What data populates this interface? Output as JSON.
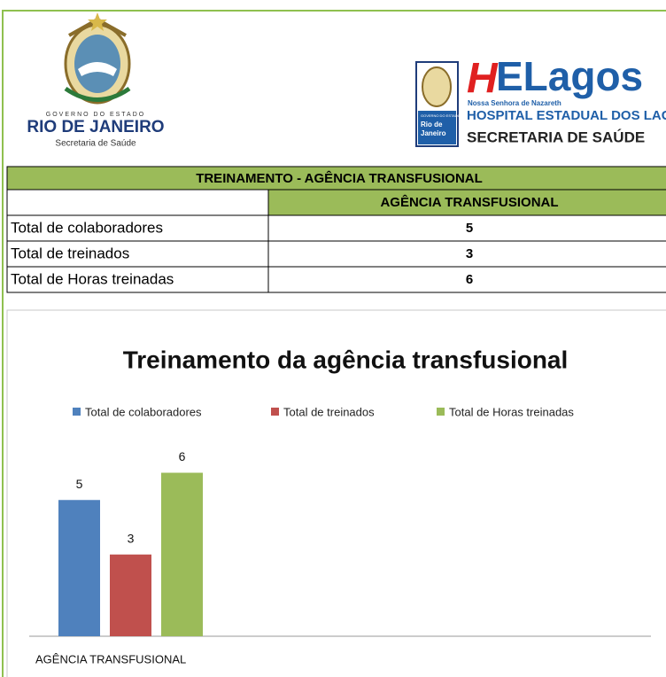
{
  "logos": {
    "left": {
      "line1": "GOVERNO DO ESTADO",
      "line2": "RIO DE JANEIRO",
      "line3": "Secretaria de Saúde"
    },
    "right": {
      "brand_h": "H",
      "brand_rest": "ELagos",
      "tagline": "Nossa Senhora de Nazareth",
      "name": "HOSPITAL ESTADUAL DOS LAGOS",
      "dept": "SECRETARIA DE SAÚDE",
      "badge": [
        "GOVERNO DO ESTADO",
        "Rio de",
        "Janeiro"
      ]
    }
  },
  "table": {
    "title": "TREINAMENTO - AGÊNCIA TRANSFUSIONAL",
    "column": "AGÊNCIA TRANSFUSIONAL",
    "rows": [
      [
        "Total de colaboradores",
        5
      ],
      [
        "Total de treinados",
        3
      ],
      [
        "Total de Horas treinadas",
        6
      ]
    ]
  },
  "chart_data": {
    "type": "bar",
    "title": "Treinamento da agência transfusional",
    "categories": [
      "AGÊNCIA TRANSFUSIONAL"
    ],
    "series": [
      {
        "name": "Total de colaboradores",
        "color": "#4f81bd",
        "values": [
          5
        ]
      },
      {
        "name": "Total de treinados",
        "color": "#c0504d",
        "values": [
          3
        ]
      },
      {
        "name": "Total de Horas treinadas",
        "color": "#9bbb59",
        "values": [
          6
        ]
      }
    ],
    "ylim": [
      0,
      8
    ],
    "legend": "top"
  }
}
